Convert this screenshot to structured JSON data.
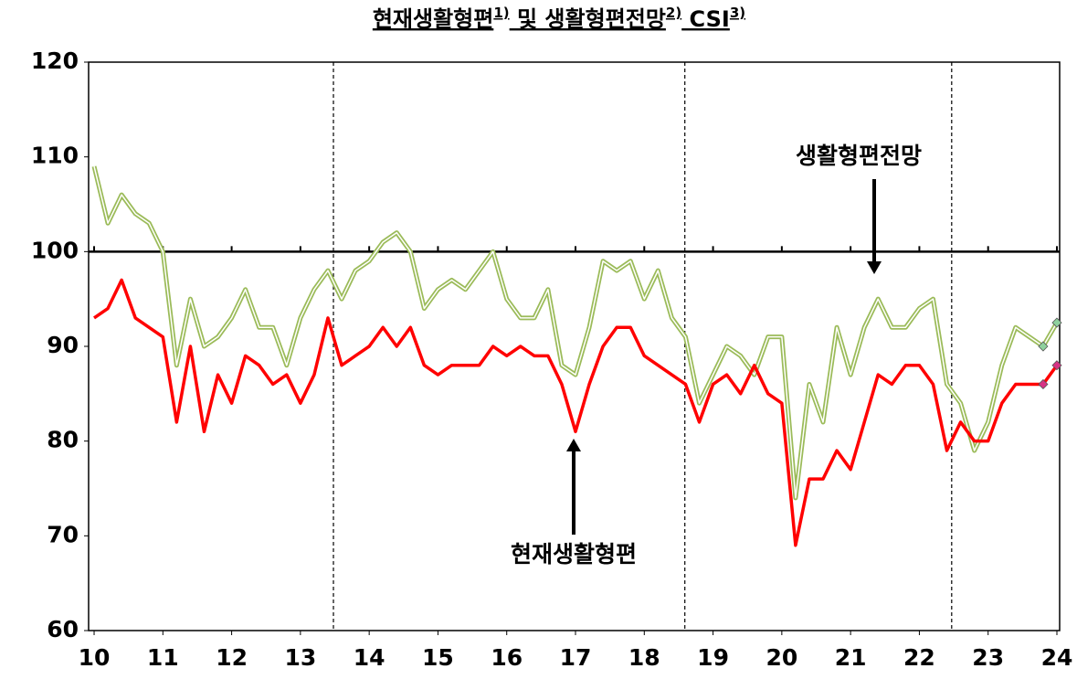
{
  "chart_data": {
    "type": "line",
    "title": [
      "현재생활형편",
      "1)",
      " 및  생활형편전망",
      "2)",
      "  CSI",
      "3)"
    ],
    "x": [
      10.0,
      10.2,
      10.4,
      10.6,
      10.8,
      11.0,
      11.2,
      11.4,
      11.6,
      11.8,
      12.0,
      12.2,
      12.4,
      12.6,
      12.8,
      13.0,
      13.2,
      13.4,
      13.6,
      13.8,
      14.0,
      14.2,
      14.4,
      14.6,
      14.8,
      15.0,
      15.2,
      15.4,
      15.6,
      15.8,
      16.0,
      16.2,
      16.4,
      16.6,
      16.8,
      17.0,
      17.2,
      17.4,
      17.6,
      17.8,
      18.0,
      18.2,
      18.4,
      18.6,
      18.8,
      19.0,
      19.2,
      19.4,
      19.6,
      19.8,
      20.0,
      20.2,
      20.4,
      20.6,
      20.8,
      21.0,
      21.2,
      21.4,
      21.6,
      21.8,
      22.0,
      22.2,
      22.4,
      22.6,
      22.8,
      23.0,
      23.2,
      23.4,
      23.6,
      23.8,
      24.0
    ],
    "series": [
      {
        "name": "생활형편전망",
        "color": "#9bbb59",
        "values": [
          109,
          103,
          106,
          104,
          103,
          100,
          88,
          95,
          90,
          91,
          93,
          96,
          92,
          92,
          88,
          93,
          96,
          98,
          95,
          98,
          99,
          101,
          102,
          100,
          94,
          96,
          97,
          96,
          98,
          100,
          95,
          93,
          93,
          96,
          88,
          87,
          92,
          99,
          98,
          99,
          95,
          98,
          93,
          91,
          84,
          87,
          90,
          89,
          87,
          91,
          91,
          74,
          86,
          82,
          92,
          87,
          92,
          95,
          92,
          92,
          94,
          95,
          86,
          84,
          79,
          82,
          88,
          92,
          91,
          90,
          92.5
        ]
      },
      {
        "name": "현재생활형편",
        "color": "#ff0000",
        "values": [
          93,
          94,
          97,
          93,
          92,
          91,
          82,
          90,
          81,
          87,
          84,
          89,
          88,
          86,
          87,
          84,
          87,
          93,
          88,
          89,
          90,
          92,
          90,
          92,
          88,
          87,
          88,
          88,
          88,
          90,
          89,
          90,
          89,
          89,
          86,
          81,
          86,
          90,
          92,
          92,
          89,
          88,
          87,
          86,
          82,
          86,
          87,
          85,
          88,
          85,
          84,
          69,
          76,
          76,
          79,
          77,
          82,
          87,
          86,
          88,
          88,
          86,
          79,
          82,
          80,
          80,
          84,
          86,
          86,
          86,
          88
        ]
      }
    ],
    "xlim": [
      9.92,
      24.04
    ],
    "xticks": [
      10,
      11,
      12,
      13,
      14,
      15,
      16,
      17,
      18,
      19,
      20,
      21,
      22,
      23,
      24
    ],
    "ylim": [
      60,
      120
    ],
    "yticks": [
      60,
      70,
      80,
      90,
      100,
      110,
      120
    ],
    "reference_y": 100,
    "reference_x": [
      13.48,
      18.59,
      22.47
    ],
    "annotations": [
      "생활형편전망",
      "현재생활형편"
    ]
  }
}
